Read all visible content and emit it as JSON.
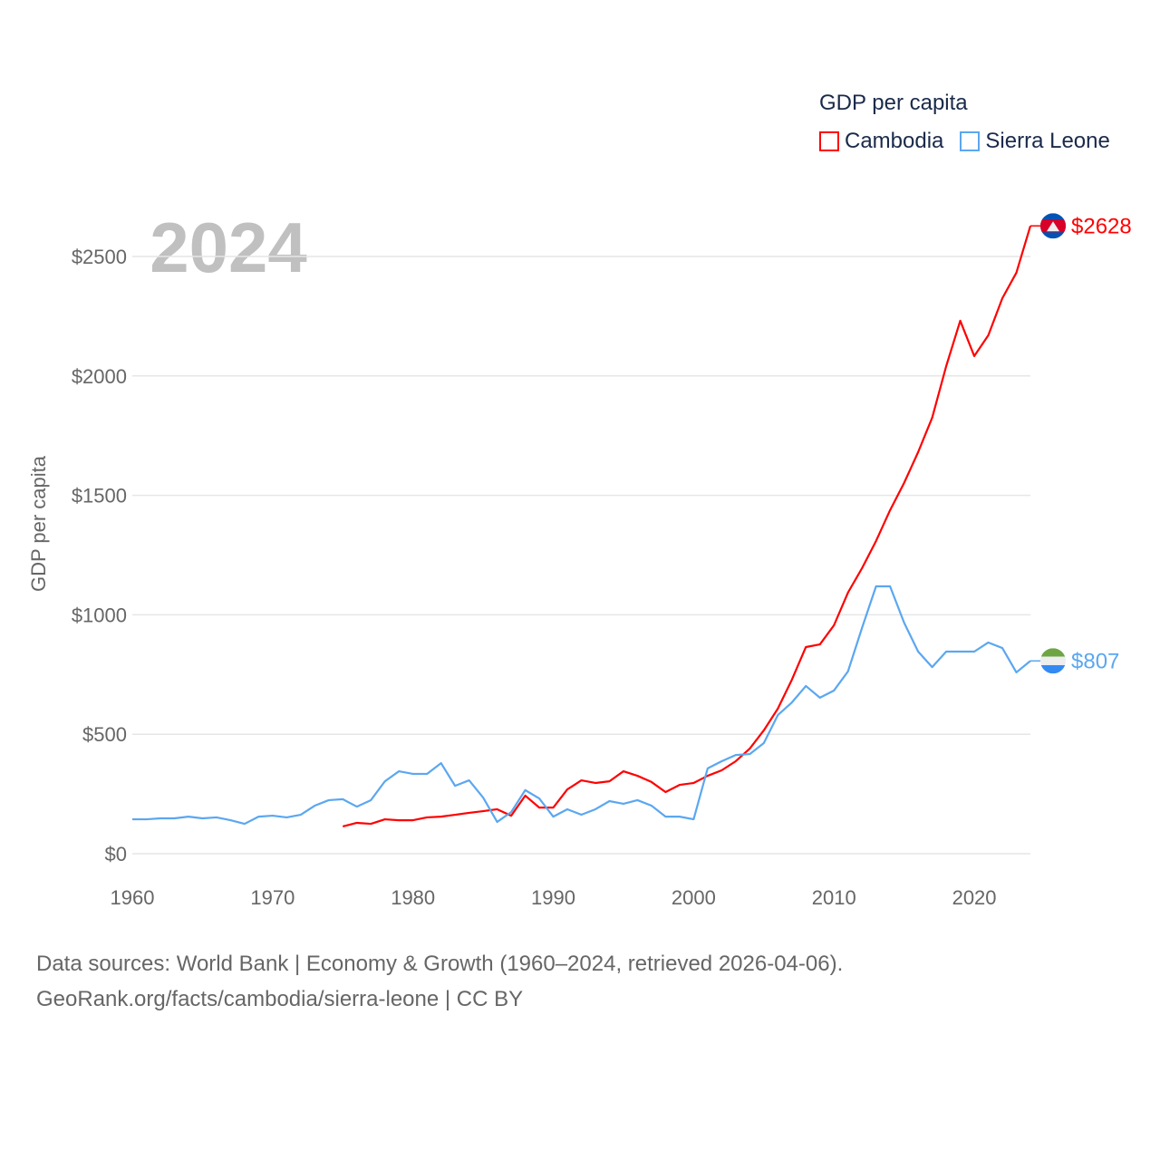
{
  "legend": {
    "title": "GDP per capita",
    "items": [
      {
        "label": "Cambodia",
        "color": "#ff0000"
      },
      {
        "label": "Sierra Leone",
        "color": "#5ba7f0"
      }
    ]
  },
  "footer": {
    "line1": "Data sources: World Bank | Economy & Growth (1960–2024, retrieved 2026-04-06).",
    "line2": "GeoRank.org/facts/cambodia/sierra-leone | CC BY"
  },
  "chart_data": {
    "type": "line",
    "title": "",
    "year_label": "2024",
    "xlabel": "",
    "ylabel": "GDP per capita",
    "xlim": [
      1960,
      2024
    ],
    "ylim": [
      0,
      2700
    ],
    "xticks": [
      1960,
      1970,
      1980,
      1990,
      2000,
      2010,
      2020
    ],
    "yticks": [
      0,
      500,
      1000,
      1500,
      2000,
      2500
    ],
    "ytick_labels": [
      "$0",
      "$500",
      "$1000",
      "$1500",
      "$2000",
      "$2500"
    ],
    "grid": true,
    "legend_position": "top-right",
    "series": [
      {
        "name": "Cambodia",
        "color": "#ff0000",
        "end_label": "$2628",
        "start_year": 1975,
        "values": [
          114,
          129,
          125,
          144,
          140,
          140,
          152,
          155,
          163,
          171,
          178,
          186,
          159,
          243,
          193,
          193,
          269,
          307,
          296,
          303,
          345,
          326,
          300,
          258,
          288,
          296,
          326,
          349,
          387,
          440,
          516,
          607,
          728,
          865,
          876,
          956,
          1093,
          1195,
          1309,
          1438,
          1552,
          1681,
          1825,
          2041,
          2231,
          2083,
          2170,
          2325,
          2432,
          2628
        ]
      },
      {
        "name": "Sierra Leone",
        "color": "#5ba7f0",
        "end_label": "$807",
        "start_year": 1960,
        "values": [
          144,
          144,
          148,
          148,
          155,
          148,
          152,
          140,
          125,
          155,
          159,
          152,
          163,
          201,
          224,
          228,
          197,
          224,
          303,
          345,
          334,
          334,
          379,
          284,
          307,
          235,
          133,
          174,
          266,
          231,
          155,
          186,
          163,
          186,
          220,
          209,
          224,
          201,
          155,
          155,
          144,
          357,
          387,
          413,
          417,
          463,
          580,
          633,
          702,
          653,
          683,
          763,
          945,
          1119,
          1119,
          967,
          846,
          781,
          846,
          846,
          846,
          884,
          861,
          759,
          807
        ]
      }
    ]
  }
}
